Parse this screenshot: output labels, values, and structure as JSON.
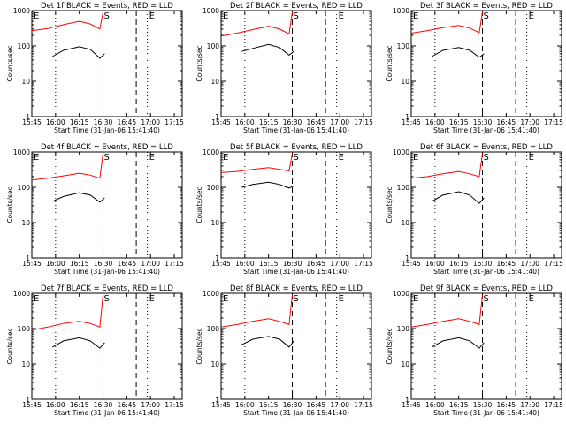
{
  "chart_data": [
    {
      "type": "line",
      "title": "Det 1f BLACK = Events, RED = LLD",
      "xlabel": "Start Time (31-Jan-06 15:41:40)",
      "ylabel": "Counts/sec",
      "x_ticks": [
        "15:45",
        "16:00",
        "16:15",
        "16:30",
        "16:45",
        "17:00",
        "17:15"
      ],
      "y_ticks": [
        "1",
        "10",
        "100",
        "1000"
      ],
      "y_scale": "log",
      "ylim": [
        1,
        1000
      ],
      "xlim": [
        "15:45",
        "17:20"
      ],
      "markers": [
        "E",
        "S",
        "E"
      ],
      "series": [
        {
          "color": "#000000",
          "points": [
            [
              "15:58",
              50
            ],
            [
              "16:05",
              75
            ],
            [
              "16:15",
              95
            ],
            [
              "16:22",
              80
            ],
            [
              "16:28",
              45
            ],
            [
              "16:31",
              60
            ]
          ]
        },
        {
          "color": "#ff0000",
          "points": [
            [
              "15:45",
              270
            ],
            [
              "15:55",
              310
            ],
            [
              "16:05",
              400
            ],
            [
              "16:15",
              500
            ],
            [
              "16:22",
              420
            ],
            [
              "16:28",
              300
            ],
            [
              "16:30",
              900
            ]
          ]
        }
      ]
    },
    {
      "type": "line",
      "title": "Det 2f BLACK = Events, RED = LLD",
      "xlabel": "Start Time (31-Jan-06 15:41:40)",
      "ylabel": "Counts/sec",
      "x_ticks": [
        "15:45",
        "16:00",
        "16:15",
        "16:30",
        "16:45",
        "17:00",
        "17:15"
      ],
      "y_ticks": [
        "1",
        "10",
        "100",
        "1000"
      ],
      "y_scale": "log",
      "ylim": [
        1,
        1000
      ],
      "xlim": [
        "15:45",
        "17:20"
      ],
      "markers": [
        "E",
        "S",
        "E"
      ],
      "series": [
        {
          "color": "#000000",
          "points": [
            [
              "15:58",
              70
            ],
            [
              "16:05",
              85
            ],
            [
              "16:15",
              110
            ],
            [
              "16:22",
              90
            ],
            [
              "16:28",
              55
            ],
            [
              "16:31",
              70
            ]
          ]
        },
        {
          "color": "#ff0000",
          "points": [
            [
              "15:45",
              190
            ],
            [
              "15:55",
              230
            ],
            [
              "16:05",
              290
            ],
            [
              "16:15",
              360
            ],
            [
              "16:22",
              300
            ],
            [
              "16:28",
              220
            ],
            [
              "16:30",
              900
            ]
          ]
        }
      ]
    },
    {
      "type": "line",
      "title": "Det 3f BLACK = Events, RED = LLD",
      "xlabel": "Start Time (31-Jan-06 15:41:40)",
      "ylabel": "Counts/sec",
      "x_ticks": [
        "15:45",
        "16:00",
        "16:15",
        "16:30",
        "16:45",
        "17:00",
        "17:15"
      ],
      "y_ticks": [
        "1",
        "10",
        "100",
        "1000"
      ],
      "y_scale": "log",
      "ylim": [
        1,
        1000
      ],
      "xlim": [
        "15:45",
        "17:20"
      ],
      "markers": [
        "E",
        "S",
        "E"
      ],
      "series": [
        {
          "color": "#000000",
          "points": [
            [
              "15:58",
              50
            ],
            [
              "16:05",
              75
            ],
            [
              "16:15",
              90
            ],
            [
              "16:22",
              75
            ],
            [
              "16:28",
              48
            ],
            [
              "16:31",
              60
            ]
          ]
        },
        {
          "color": "#ff0000",
          "points": [
            [
              "15:45",
              230
            ],
            [
              "15:55",
              270
            ],
            [
              "16:05",
              330
            ],
            [
              "16:15",
              380
            ],
            [
              "16:22",
              320
            ],
            [
              "16:28",
              240
            ],
            [
              "16:30",
              900
            ]
          ]
        }
      ]
    },
    {
      "type": "line",
      "title": "Det 4f BLACK = Events, RED = LLD",
      "xlabel": "Start Time (31-Jan-06 15:41:40)",
      "ylabel": "Counts/sec",
      "x_ticks": [
        "15:45",
        "16:00",
        "16:15",
        "16:30",
        "16:45",
        "17:00",
        "17:15"
      ],
      "y_ticks": [
        "1",
        "10",
        "100",
        "1000"
      ],
      "y_scale": "log",
      "ylim": [
        1,
        1000
      ],
      "xlim": [
        "15:45",
        "17:20"
      ],
      "markers": [
        "E",
        "S",
        "E"
      ],
      "series": [
        {
          "color": "#000000",
          "points": [
            [
              "15:58",
              40
            ],
            [
              "16:05",
              55
            ],
            [
              "16:15",
              70
            ],
            [
              "16:22",
              60
            ],
            [
              "16:28",
              38
            ],
            [
              "16:31",
              50
            ]
          ]
        },
        {
          "color": "#ff0000",
          "points": [
            [
              "15:45",
              160
            ],
            [
              "15:55",
              180
            ],
            [
              "16:05",
              210
            ],
            [
              "16:15",
              250
            ],
            [
              "16:22",
              220
            ],
            [
              "16:28",
              180
            ],
            [
              "16:30",
              900
            ]
          ]
        }
      ]
    },
    {
      "type": "line",
      "title": "Det 5f BLACK = Events, RED = LLD",
      "xlabel": "Start Time (31-Jan-06 15:41:40)",
      "ylabel": "Counts/sec",
      "x_ticks": [
        "15:45",
        "16:00",
        "16:15",
        "16:30",
        "16:45",
        "17:00",
        "17:15"
      ],
      "y_ticks": [
        "1",
        "10",
        "100",
        "1000"
      ],
      "y_scale": "log",
      "ylim": [
        1,
        1000
      ],
      "xlim": [
        "15:45",
        "17:20"
      ],
      "markers": [
        "E",
        "S",
        "E"
      ],
      "series": [
        {
          "color": "#000000",
          "points": [
            [
              "15:58",
              100
            ],
            [
              "16:05",
              120
            ],
            [
              "16:15",
              140
            ],
            [
              "16:22",
              120
            ],
            [
              "16:28",
              95
            ],
            [
              "16:31",
              110
            ]
          ]
        },
        {
          "color": "#ff0000",
          "points": [
            [
              "15:45",
              260
            ],
            [
              "15:55",
              280
            ],
            [
              "16:05",
              320
            ],
            [
              "16:15",
              360
            ],
            [
              "16:22",
              320
            ],
            [
              "16:28",
              290
            ],
            [
              "16:30",
              900
            ]
          ]
        }
      ]
    },
    {
      "type": "line",
      "title": "Det 6f BLACK = Events, RED = LLD",
      "xlabel": "Start Time (31-Jan-06 15:41:40)",
      "ylabel": "Counts/sec",
      "x_ticks": [
        "15:45",
        "16:00",
        "16:15",
        "16:30",
        "16:45",
        "17:00",
        "17:15"
      ],
      "y_ticks": [
        "1",
        "10",
        "100",
        "1000"
      ],
      "y_scale": "log",
      "ylim": [
        1,
        1000
      ],
      "xlim": [
        "15:45",
        "17:20"
      ],
      "markers": [
        "E",
        "S",
        "E"
      ],
      "series": [
        {
          "color": "#000000",
          "points": [
            [
              "15:58",
              40
            ],
            [
              "16:05",
              60
            ],
            [
              "16:15",
              75
            ],
            [
              "16:22",
              60
            ],
            [
              "16:28",
              35
            ],
            [
              "16:31",
              50
            ]
          ]
        },
        {
          "color": "#ff0000",
          "points": [
            [
              "15:45",
              180
            ],
            [
              "15:55",
              200
            ],
            [
              "16:05",
              240
            ],
            [
              "16:15",
              280
            ],
            [
              "16:22",
              240
            ],
            [
              "16:28",
              200
            ],
            [
              "16:30",
              900
            ]
          ]
        }
      ]
    },
    {
      "type": "line",
      "title": "Det 7f BLACK = Events, RED = LLD",
      "xlabel": "Start Time (31-Jan-06 15:41:40)",
      "ylabel": "Counts/sec",
      "x_ticks": [
        "15:45",
        "16:00",
        "16:15",
        "16:30",
        "16:45",
        "17:00",
        "17:15"
      ],
      "y_ticks": [
        "1",
        "10",
        "100",
        "1000"
      ],
      "y_scale": "log",
      "ylim": [
        1,
        1000
      ],
      "xlim": [
        "15:45",
        "17:20"
      ],
      "markers": [
        "E",
        "S",
        "E"
      ],
      "series": [
        {
          "color": "#000000",
          "points": [
            [
              "15:58",
              30
            ],
            [
              "16:05",
              45
            ],
            [
              "16:15",
              55
            ],
            [
              "16:22",
              45
            ],
            [
              "16:28",
              28
            ],
            [
              "16:31",
              40
            ]
          ]
        },
        {
          "color": "#ff0000",
          "points": [
            [
              "15:45",
              90
            ],
            [
              "15:55",
              110
            ],
            [
              "16:05",
              140
            ],
            [
              "16:15",
              160
            ],
            [
              "16:22",
              140
            ],
            [
              "16:28",
              110
            ],
            [
              "16:30",
              900
            ]
          ]
        }
      ]
    },
    {
      "type": "line",
      "title": "Det 8f BLACK = Events, RED = LLD",
      "xlabel": "Start Time (31-Jan-06 15:41:40)",
      "ylabel": "Counts/sec",
      "x_ticks": [
        "15:45",
        "16:00",
        "16:15",
        "16:30",
        "16:45",
        "17:00",
        "17:15"
      ],
      "y_ticks": [
        "1",
        "10",
        "100",
        "1000"
      ],
      "y_scale": "log",
      "ylim": [
        1,
        1000
      ],
      "xlim": [
        "15:45",
        "17:20"
      ],
      "markers": [
        "E",
        "S",
        "E"
      ],
      "series": [
        {
          "color": "#000000",
          "points": [
            [
              "15:58",
              35
            ],
            [
              "16:05",
              50
            ],
            [
              "16:15",
              60
            ],
            [
              "16:22",
              50
            ],
            [
              "16:28",
              30
            ],
            [
              "16:31",
              45
            ]
          ]
        },
        {
          "color": "#ff0000",
          "points": [
            [
              "15:45",
              110
            ],
            [
              "15:55",
              130
            ],
            [
              "16:05",
              160
            ],
            [
              "16:15",
              190
            ],
            [
              "16:22",
              160
            ],
            [
              "16:28",
              130
            ],
            [
              "16:30",
              900
            ]
          ]
        }
      ]
    },
    {
      "type": "line",
      "title": "Det 9f BLACK = Events, RED = LLD",
      "xlabel": "Start Time (31-Jan-06 15:41:40)",
      "ylabel": "Counts/sec",
      "x_ticks": [
        "15:45",
        "16:00",
        "16:15",
        "16:30",
        "16:45",
        "17:00",
        "17:15"
      ],
      "y_ticks": [
        "1",
        "10",
        "100",
        "1000"
      ],
      "y_scale": "log",
      "ylim": [
        1,
        1000
      ],
      "xlim": [
        "15:45",
        "17:20"
      ],
      "markers": [
        "E",
        "S",
        "E"
      ],
      "series": [
        {
          "color": "#000000",
          "points": [
            [
              "15:58",
              30
            ],
            [
              "16:05",
              45
            ],
            [
              "16:15",
              55
            ],
            [
              "16:22",
              45
            ],
            [
              "16:28",
              28
            ],
            [
              "16:31",
              40
            ]
          ]
        },
        {
          "color": "#ff0000",
          "points": [
            [
              "15:45",
              110
            ],
            [
              "15:55",
              130
            ],
            [
              "16:05",
              160
            ],
            [
              "16:15",
              190
            ],
            [
              "16:22",
              160
            ],
            [
              "16:28",
              130
            ],
            [
              "16:30",
              900
            ]
          ]
        }
      ]
    }
  ]
}
